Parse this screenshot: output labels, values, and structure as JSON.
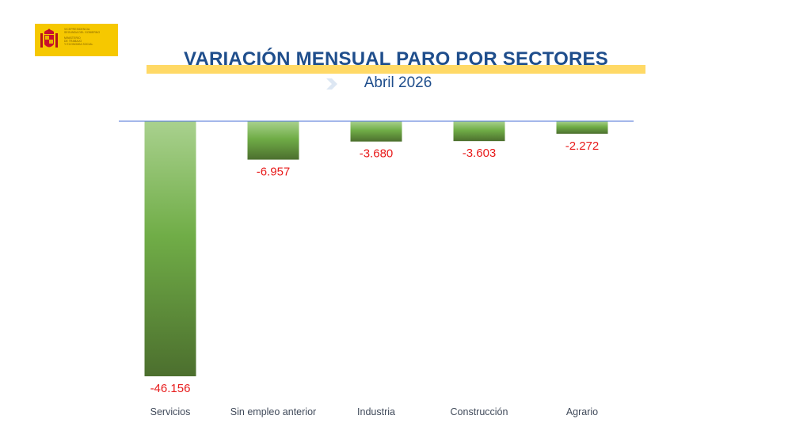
{
  "logo": {
    "lines": [
      "VICEPRESIDENCIA",
      "SEGUNDA DEL GOBIERNO",
      "MINISTERIO",
      "DE TRABAJO",
      "Y ECONOMÍA SOCIAL"
    ],
    "background": "#f6c800"
  },
  "colors": {
    "title": "#1f4e8c",
    "title_band": "#ffd966",
    "chevron": "#dde7f3",
    "axis": "#4a6fd6",
    "value_label": "#e81c1c",
    "category_label": "#404a5a",
    "bar_light": "#a9d18e",
    "bar_mid": "#70ad47",
    "bar_dark": "#4c6f2e"
  },
  "chart_data": {
    "type": "bar",
    "title": "VARIACIÓN MENSUAL PARO POR SECTORES",
    "subtitle": "Abril 2026",
    "categories": [
      "Servicios",
      "Sin empleo anterior",
      "Industria",
      "Construcción",
      "Agrario"
    ],
    "values": [
      -46156,
      -6957,
      -3680,
      -3603,
      -2272
    ],
    "value_labels": [
      "-46.156",
      "-6.957",
      "-3.680",
      "-3.603",
      "-2.272"
    ],
    "ylim": [
      -46156,
      0
    ],
    "grid": false,
    "legend": "none",
    "xlabel": "",
    "ylabel": ""
  }
}
